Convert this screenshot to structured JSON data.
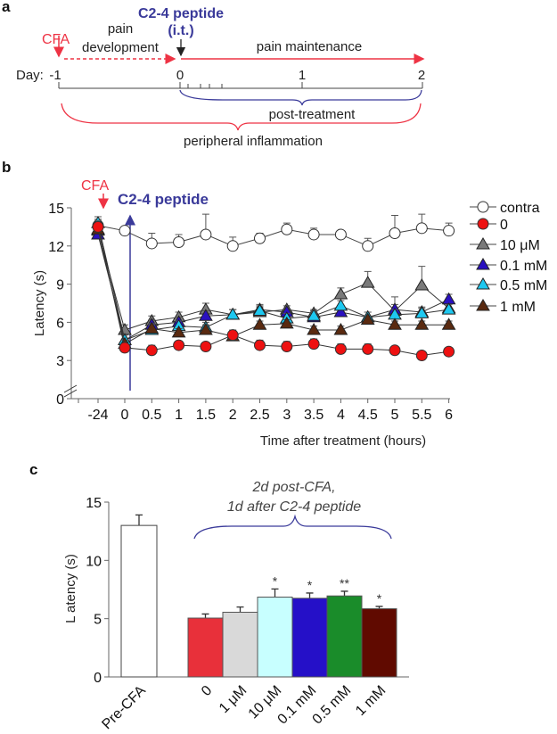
{
  "panel_a": {
    "label": "a",
    "cfa": "CFA",
    "pain_development": [
      "pain",
      "development"
    ],
    "peptide": [
      "C2-4 peptide",
      "(i.t.)"
    ],
    "pain_maintenance": "pain maintenance",
    "day_prefix": "Day:",
    "days": [
      "-1",
      "0",
      "1",
      "2"
    ],
    "post_treatment": "post-treatment",
    "peripheral_inflammation": "peripheral inflammation",
    "colors": {
      "red": "#ee3344",
      "blue": "#3a3a9a"
    }
  },
  "chart_data": [
    {
      "panel": "b",
      "type": "line",
      "cfa_label": "CFA",
      "peptide_label": "C2-4 peptide",
      "xlabel": "Time after treatment (hours)",
      "ylabel": "Latency (s)",
      "x": [
        "-24",
        "0",
        "0.5",
        "1",
        "1.5",
        "2",
        "2.5",
        "3",
        "3.5",
        "4",
        "4.5",
        "5",
        "5.5",
        "6"
      ],
      "yticks": [
        "0",
        "3",
        "6",
        "9",
        "12",
        "15"
      ],
      "ylim": [
        0,
        15
      ],
      "legend_position": "right",
      "series": [
        {
          "name": "contra",
          "marker": "circle",
          "color": "#ffffff",
          "values": [
            13.6,
            13.2,
            12.2,
            12.3,
            12.9,
            12.0,
            12.6,
            13.3,
            12.9,
            12.9,
            12.0,
            13.0,
            13.4,
            13.2
          ],
          "errors": [
            0.5,
            0.2,
            0.8,
            0.6,
            1.6,
            0.7,
            0.4,
            0.5,
            0.5,
            0.3,
            0.6,
            1.4,
            1.1,
            0.6
          ]
        },
        {
          "name": "0",
          "marker": "circle",
          "color": "#ee1111",
          "values": [
            13.5,
            4.0,
            3.8,
            4.2,
            4.1,
            5.0,
            4.2,
            4.1,
            4.3,
            3.9,
            3.9,
            3.8,
            3.4,
            3.7
          ],
          "errors": [
            0.5,
            0.3,
            0.4,
            0.3,
            0.3,
            0.4,
            0.4,
            0.4,
            0.4,
            0.4,
            0.4,
            0.3,
            0.3,
            0.2
          ]
        },
        {
          "name": "10 μM",
          "marker": "triangle",
          "color": "#7a7a7a",
          "values": [
            13.2,
            5.4,
            6.1,
            6.4,
            7.0,
            6.6,
            6.8,
            7.0,
            6.7,
            8.2,
            9.1,
            6.9,
            8.9,
            7.1
          ],
          "errors": [
            0.5,
            0.4,
            0.4,
            0.4,
            0.5,
            0.4,
            0.4,
            0.3,
            0.3,
            0.5,
            0.9,
            1.1,
            1.5,
            0.4
          ]
        },
        {
          "name": "0.1 mM",
          "marker": "triangle",
          "color": "#2a10c0",
          "values": [
            12.9,
            4.6,
            5.8,
            6.0,
            6.5,
            6.6,
            7.0,
            6.8,
            6.4,
            6.8,
            6.4,
            7.0,
            6.8,
            7.8
          ],
          "errors": [
            0.5,
            0.4,
            0.4,
            0.4,
            0.4,
            0.4,
            0.4,
            0.3,
            0.4,
            0.4,
            0.4,
            0.4,
            0.4,
            0.4
          ]
        },
        {
          "name": "0.5 mM",
          "marker": "triangle",
          "color": "#1ec8f0",
          "values": [
            13.8,
            4.6,
            5.4,
            5.7,
            5.6,
            6.6,
            6.9,
            6.3,
            6.5,
            7.3,
            6.4,
            6.6,
            6.7,
            7.0
          ],
          "errors": [
            0.5,
            0.4,
            0.4,
            0.4,
            0.4,
            0.4,
            0.4,
            0.4,
            0.4,
            0.4,
            0.4,
            0.4,
            0.4,
            0.4
          ]
        },
        {
          "name": "1 mM",
          "marker": "triangle",
          "color": "#5a2a10",
          "values": [
            13.3,
            4.3,
            5.5,
            5.2,
            5.4,
            4.9,
            5.8,
            5.9,
            5.4,
            5.4,
            6.2,
            5.8,
            5.8,
            5.8
          ],
          "errors": [
            0.5,
            0.3,
            0.4,
            0.3,
            0.4,
            0.4,
            0.3,
            0.3,
            0.3,
            0.3,
            0.3,
            0.3,
            0.3,
            0.3
          ]
        }
      ]
    },
    {
      "panel": "c",
      "type": "bar",
      "ylabel": "L atency (s)",
      "annotation": [
        "2d post-CFA,",
        "1d after C2-4 peptide"
      ],
      "categories": [
        "Pre-CFA",
        "0",
        "1 μM",
        "10 μM",
        "0.1 mM",
        "0.5 mM",
        "1 mM"
      ],
      "values": [
        13.0,
        5.05,
        5.55,
        6.85,
        6.75,
        6.95,
        5.85
      ],
      "errors": [
        0.9,
        0.35,
        0.45,
        0.7,
        0.45,
        0.4,
        0.2
      ],
      "significance": [
        "",
        "",
        "",
        "*",
        "*",
        "**",
        "*"
      ],
      "colors": [
        "#ffffff",
        "#e8303a",
        "#d9d9d9",
        "#c8ffff",
        "#2510c8",
        "#1a8c2a",
        "#600a00"
      ],
      "yticks": [
        "0",
        "5",
        "10",
        "15"
      ],
      "ylim": [
        0,
        15
      ]
    }
  ],
  "panel_labels": {
    "b": "b",
    "c": "c"
  }
}
